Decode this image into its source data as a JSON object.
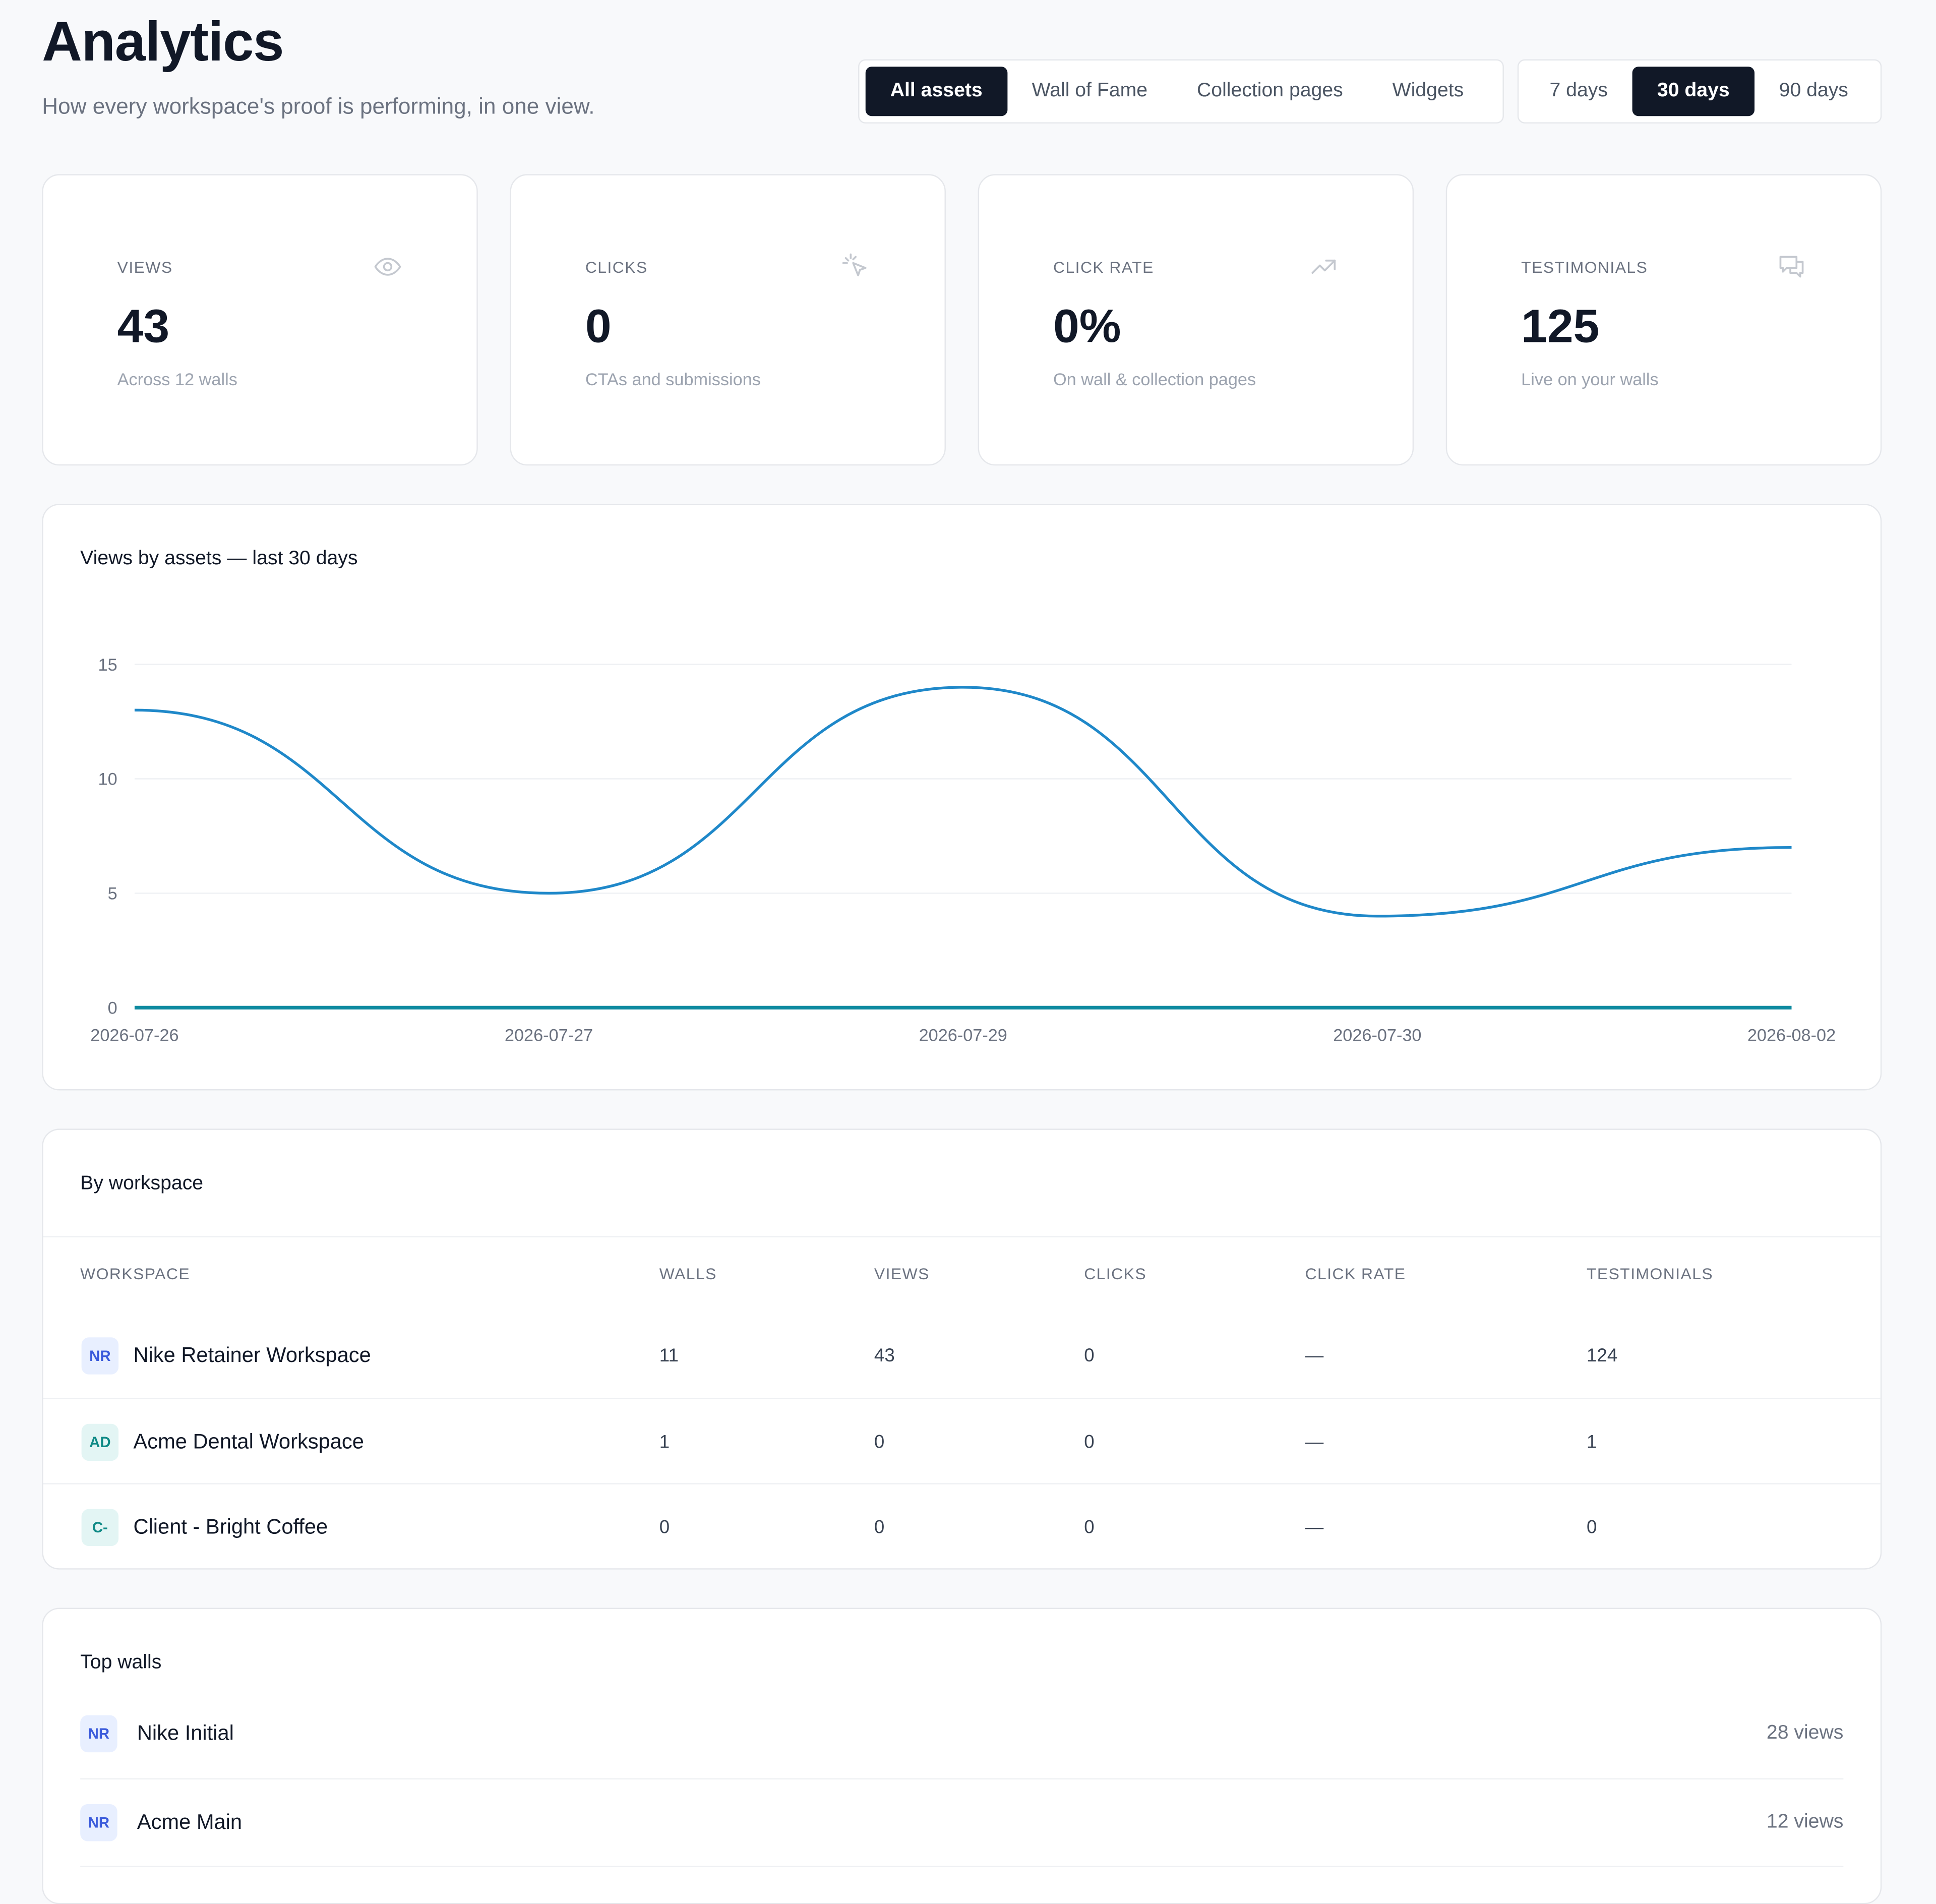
{
  "header": {
    "title": "Analytics",
    "subtitle": "How every workspace's proof is performing, in one view."
  },
  "asset_filter": {
    "options": [
      "All assets",
      "Wall of Fame",
      "Collection pages",
      "Widgets"
    ],
    "selected": "All assets"
  },
  "range_filter": {
    "options": [
      "7 days",
      "30 days",
      "90 days"
    ],
    "selected": "30 days"
  },
  "kpis": [
    {
      "label": "VIEWS",
      "value": "43",
      "note": "Across 12 walls",
      "icon": "eye-icon"
    },
    {
      "label": "CLICKS",
      "value": "0",
      "note": "CTAs and submissions",
      "icon": "cursor-click-icon"
    },
    {
      "label": "CLICK RATE",
      "value": "0%",
      "note": "On wall & collection pages",
      "icon": "trending-up-icon"
    },
    {
      "label": "TESTIMONIALS",
      "value": "125",
      "note": "Live on your walls",
      "icon": "chat-bubbles-icon"
    }
  ],
  "chart": {
    "title": "Views by assets — last 30 days"
  },
  "chart_data": {
    "type": "line",
    "x": [
      "2026-07-26",
      "2026-07-27",
      "2026-07-29",
      "2026-07-30",
      "2026-08-02"
    ],
    "series": [
      {
        "values": [
          13,
          5,
          14,
          4,
          7
        ],
        "color": "#1f88c9"
      },
      {
        "values": [
          0,
          0,
          0,
          0,
          0
        ],
        "color": "#0e8aa0"
      }
    ],
    "ylim": [
      0,
      15
    ],
    "yticks": [
      0,
      5,
      10,
      15
    ],
    "grid": true,
    "smooth": true
  },
  "workspaces": {
    "title": "By workspace",
    "columns": [
      "WORKSPACE",
      "WALLS",
      "VIEWS",
      "CLICKS",
      "CLICK RATE",
      "TESTIMONIALS"
    ],
    "rows": [
      {
        "initials": "NR",
        "name": "Nike Retainer Workspace",
        "walls": "11",
        "views": "43",
        "clicks": "0",
        "click_rate": "—",
        "testimonials": "124",
        "badge_bg": "#e8efff",
        "badge_fg": "#3b5bdb"
      },
      {
        "initials": "AD",
        "name": "Acme Dental Workspace",
        "walls": "1",
        "views": "0",
        "clicks": "0",
        "click_rate": "—",
        "testimonials": "1",
        "badge_bg": "#e3f5f4",
        "badge_fg": "#0f8a86"
      },
      {
        "initials": "C-",
        "name": "Client - Bright Coffee",
        "walls": "0",
        "views": "0",
        "clicks": "0",
        "click_rate": "—",
        "testimonials": "0",
        "badge_bg": "#e3f5f4",
        "badge_fg": "#0f8a86"
      }
    ]
  },
  "top_walls": {
    "title": "Top walls",
    "items": [
      {
        "initials": "NR",
        "name": "Nike Initial",
        "views": "28 views"
      },
      {
        "initials": "NR",
        "name": "Acme Main",
        "views": "12 views"
      }
    ]
  },
  "colors": {
    "dark": "#111827",
    "accent_line": "#1f88c9",
    "baseline_line": "#0e8aa0"
  }
}
